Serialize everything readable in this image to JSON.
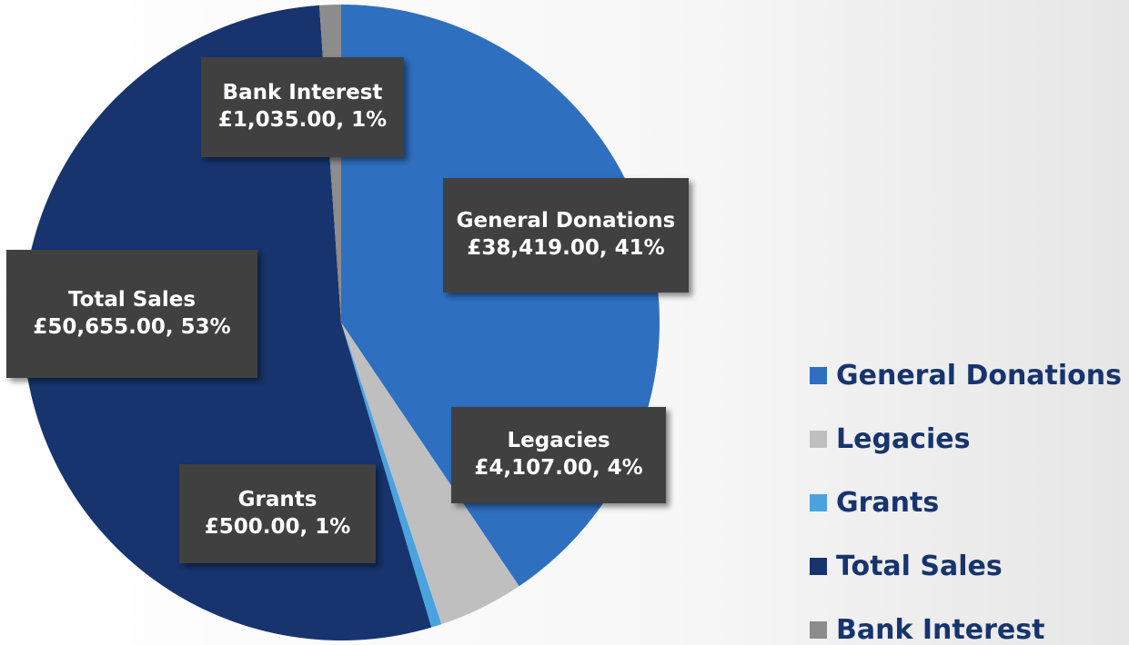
{
  "chart_data": {
    "type": "pie",
    "categories": [
      "General Donations",
      "Legacies",
      "Grants",
      "Total Sales",
      "Bank Interest"
    ],
    "values": [
      38419,
      4107,
      500,
      50655,
      1035
    ],
    "value_labels": [
      "£38,419.00, 41%",
      "£4,107.00, 4%",
      "£500.00, 1%",
      "£50,655.00, 53%",
      "£1,035.00, 1%"
    ],
    "colors": [
      "#2e6fc0",
      "#bfbfbf",
      "#4aa3df",
      "#17346e",
      "#8c8c8c"
    ],
    "legend": "right"
  }
}
